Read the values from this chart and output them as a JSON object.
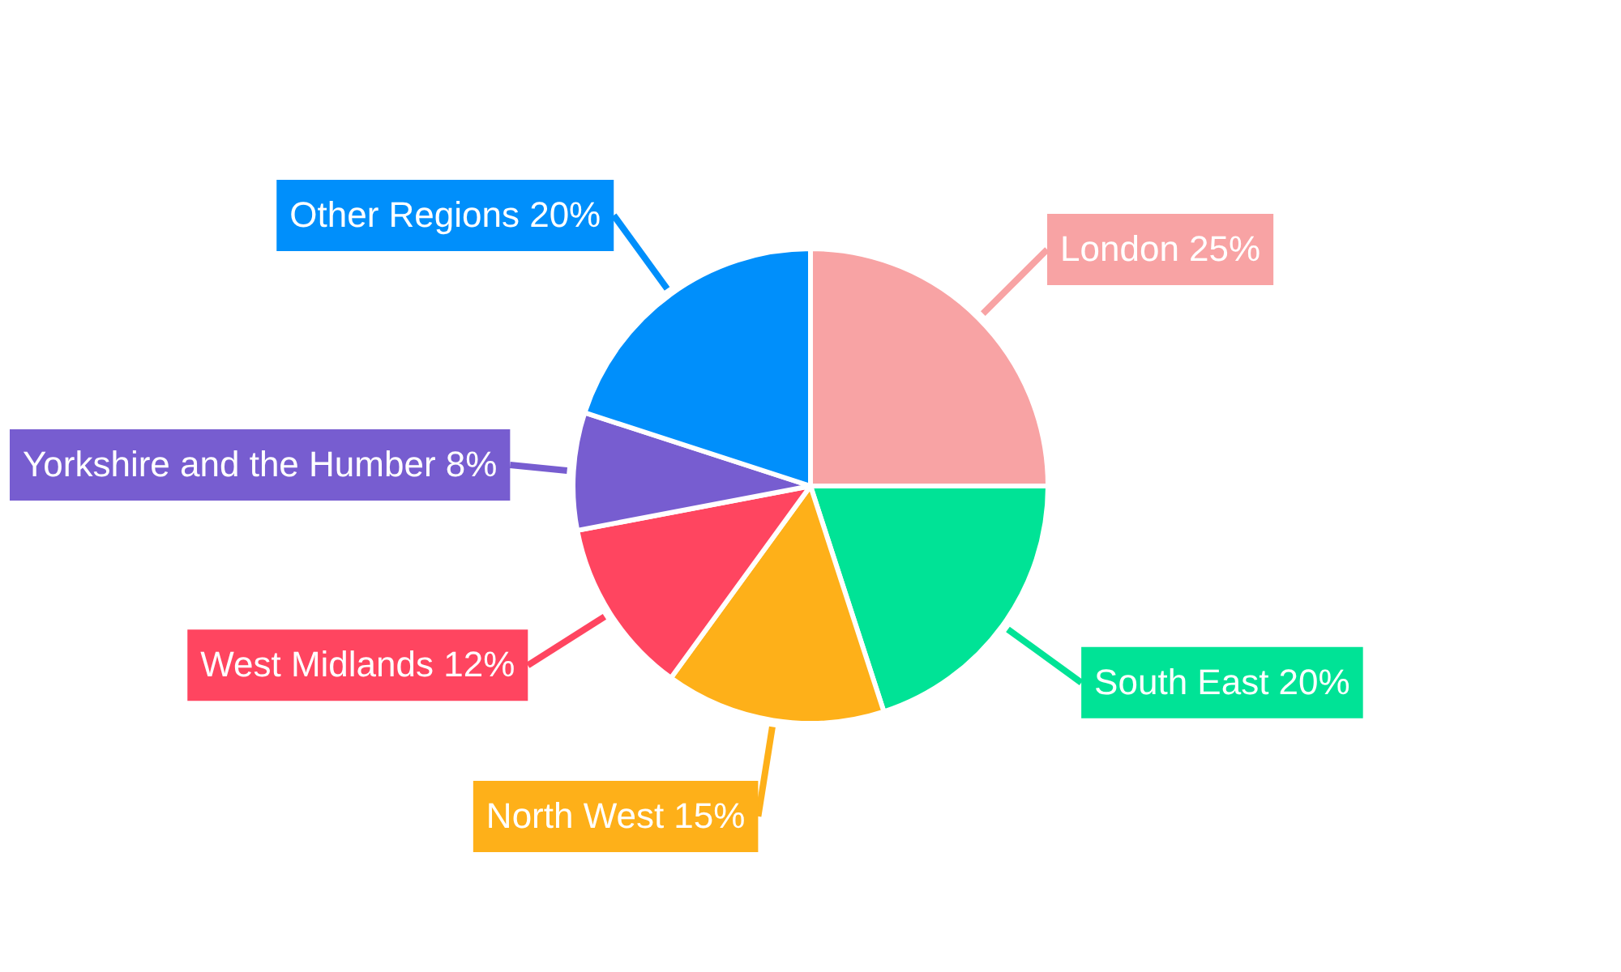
{
  "chart_data": {
    "type": "pie",
    "categories": [
      "London",
      "South East",
      "North West",
      "West Midlands",
      "Yorkshire and the Humber",
      "Other Regions"
    ],
    "values": [
      25,
      20,
      15,
      12,
      8,
      20
    ],
    "value_labels": [
      "25%",
      "20%",
      "15%",
      "12%",
      "8%",
      "20%"
    ],
    "colors": [
      "#f8a3a4",
      "#00e396",
      "#feb019",
      "#ff4560",
      "#775dd0",
      "#008ffb"
    ]
  }
}
